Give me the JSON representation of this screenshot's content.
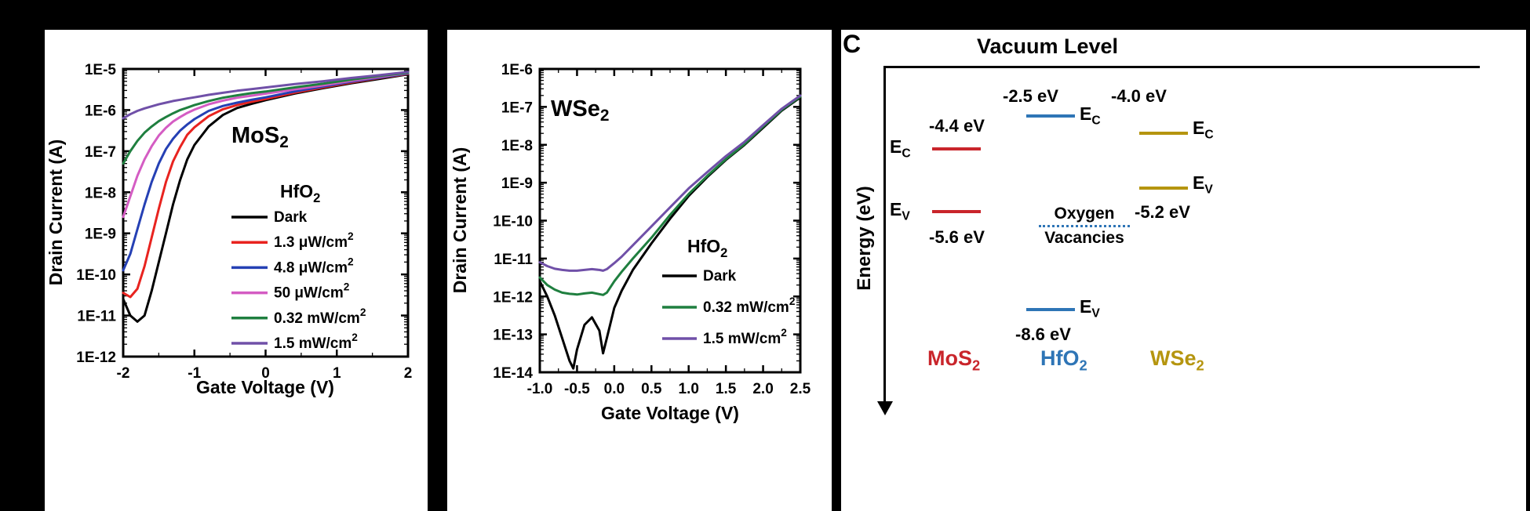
{
  "figure": {
    "background": "#000000",
    "panel_background": "#ffffff"
  },
  "chart_data": [
    {
      "id": "mos2",
      "type": "line",
      "title": {
        "text": "MoS",
        "sub": "2",
        "color": "#d02027"
      },
      "xlabel": "Gate Voltage (V)",
      "ylabel": "Drain Current (A)",
      "xlim": [
        -2,
        2
      ],
      "ylog_range": [
        -12,
        -5
      ],
      "x_ticks": [
        -2,
        -1,
        0,
        1,
        2
      ],
      "x_tick_labels": [
        "-2",
        "-1",
        "0",
        "1",
        "2"
      ],
      "y_tick_labels": [
        "1E-5",
        "1E-6",
        "1E-7",
        "1E-8",
        "1E-9",
        "1E-10",
        "1E-11",
        "1E-12"
      ],
      "legend_title": {
        "text": "HfO",
        "sub": "2",
        "color": "#5b9bd5"
      },
      "series": [
        {
          "name": "Dark",
          "sup": "",
          "color": "#000000",
          "x": [
            -2,
            -1.9,
            -1.8,
            -1.7,
            -1.6,
            -1.5,
            -1.4,
            -1.3,
            -1.2,
            -1.1,
            -1,
            -0.8,
            -0.6,
            -0.4,
            -0.2,
            0,
            0.4,
            0.8,
            1.2,
            1.6,
            2
          ],
          "logy": [
            -10.6,
            -11.0,
            -11.15,
            -11.0,
            -10.4,
            -9.7,
            -9.0,
            -8.3,
            -7.7,
            -7.2,
            -6.85,
            -6.4,
            -6.12,
            -5.95,
            -5.85,
            -5.76,
            -5.6,
            -5.47,
            -5.35,
            -5.24,
            -5.13
          ]
        },
        {
          "name": "1.3 μW/cm",
          "sup": "2",
          "color": "#e8231f",
          "x": [
            -2,
            -1.9,
            -1.8,
            -1.7,
            -1.6,
            -1.5,
            -1.4,
            -1.3,
            -1.2,
            -1.1,
            -1,
            -0.8,
            -0.6,
            -0.4,
            -0.2,
            0,
            0.4,
            0.8,
            1.2,
            1.6,
            2
          ],
          "logy": [
            -10.45,
            -10.55,
            -10.35,
            -9.8,
            -9.1,
            -8.4,
            -7.75,
            -7.25,
            -6.9,
            -6.6,
            -6.42,
            -6.15,
            -5.98,
            -5.88,
            -5.8,
            -5.73,
            -5.58,
            -5.45,
            -5.33,
            -5.22,
            -5.12
          ]
        },
        {
          "name": "4.8 μW/cm",
          "sup": "2",
          "color": "#2540b4",
          "x": [
            -2,
            -1.9,
            -1.8,
            -1.7,
            -1.6,
            -1.5,
            -1.4,
            -1.3,
            -1.2,
            -1.1,
            -1,
            -0.8,
            -0.6,
            -0.4,
            -0.2,
            0,
            0.4,
            0.8,
            1.2,
            1.6,
            2
          ],
          "logy": [
            -9.9,
            -9.5,
            -8.9,
            -8.3,
            -7.75,
            -7.3,
            -6.95,
            -6.7,
            -6.5,
            -6.35,
            -6.22,
            -6.02,
            -5.9,
            -5.82,
            -5.75,
            -5.69,
            -5.55,
            -5.43,
            -5.31,
            -5.21,
            -5.11
          ]
        },
        {
          "name": "50 μW/cm",
          "sup": "2",
          "color": "#d45cc3",
          "x": [
            -2,
            -1.9,
            -1.8,
            -1.7,
            -1.6,
            -1.5,
            -1.4,
            -1.3,
            -1.2,
            -1.1,
            -1,
            -0.8,
            -0.6,
            -0.4,
            -0.2,
            0,
            0.4,
            0.8,
            1.2,
            1.6,
            2
          ],
          "logy": [
            -8.6,
            -8.1,
            -7.6,
            -7.2,
            -6.88,
            -6.62,
            -6.43,
            -6.28,
            -6.17,
            -6.07,
            -5.99,
            -5.86,
            -5.77,
            -5.7,
            -5.65,
            -5.6,
            -5.5,
            -5.4,
            -5.29,
            -5.19,
            -5.1
          ]
        },
        {
          "name": "0.32 mW/cm",
          "sup": "2",
          "color": "#1f7f3f",
          "x": [
            -2,
            -1.9,
            -1.8,
            -1.7,
            -1.6,
            -1.5,
            -1.4,
            -1.3,
            -1.2,
            -1.1,
            -1,
            -0.8,
            -0.6,
            -0.4,
            -0.2,
            0,
            0.4,
            0.8,
            1.2,
            1.6,
            2
          ],
          "logy": [
            -7.3,
            -7.0,
            -6.75,
            -6.55,
            -6.4,
            -6.27,
            -6.17,
            -6.08,
            -6.0,
            -5.94,
            -5.88,
            -5.78,
            -5.7,
            -5.64,
            -5.59,
            -5.55,
            -5.45,
            -5.36,
            -5.26,
            -5.17,
            -5.09
          ]
        },
        {
          "name": "1.5 mW/cm",
          "sup": "2",
          "color": "#7050a8",
          "x": [
            -2,
            -1.9,
            -1.8,
            -1.7,
            -1.6,
            -1.5,
            -1.4,
            -1.3,
            -1.2,
            -1.1,
            -1,
            -0.8,
            -0.6,
            -0.4,
            -0.2,
            0,
            0.4,
            0.8,
            1.2,
            1.6,
            2
          ],
          "logy": [
            -6.2,
            -6.1,
            -6.02,
            -5.96,
            -5.91,
            -5.86,
            -5.82,
            -5.78,
            -5.75,
            -5.72,
            -5.69,
            -5.63,
            -5.58,
            -5.53,
            -5.49,
            -5.45,
            -5.37,
            -5.3,
            -5.22,
            -5.15,
            -5.07
          ]
        }
      ]
    },
    {
      "id": "wse2",
      "type": "line",
      "title": {
        "text": "WSe",
        "sub": "2",
        "color": "#b5950f"
      },
      "xlabel": "Gate Voltage (V)",
      "ylabel": "Drain Current (A)",
      "xlim": [
        -1,
        2.5
      ],
      "ylog_range": [
        -14,
        -6
      ],
      "x_ticks": [
        -1,
        -0.5,
        0,
        0.5,
        1,
        1.5,
        2,
        2.5
      ],
      "x_tick_labels": [
        "-1.0",
        "-0.5",
        "0.0",
        "0.5",
        "1.0",
        "1.5",
        "2.0",
        "2.5"
      ],
      "y_tick_labels": [
        "1E-6",
        "1E-7",
        "1E-8",
        "1E-9",
        "1E-10",
        "1E-11",
        "1E-12",
        "1E-13",
        "1E-14"
      ],
      "legend_title": {
        "text": "HfO",
        "sub": "2",
        "color": "#5b9bd5"
      },
      "series": [
        {
          "name": "Dark",
          "sup": "",
          "color": "#000000",
          "x": [
            -1,
            -0.9,
            -0.8,
            -0.7,
            -0.6,
            -0.55,
            -0.5,
            -0.4,
            -0.3,
            -0.2,
            -0.15,
            -0.1,
            0,
            0.1,
            0.25,
            0.5,
            0.75,
            1,
            1.25,
            1.5,
            1.75,
            2,
            2.25,
            2.5
          ],
          "logy": [
            -11.6,
            -12.0,
            -12.5,
            -13.1,
            -13.7,
            -13.9,
            -13.4,
            -12.75,
            -12.55,
            -12.9,
            -13.5,
            -13.1,
            -12.3,
            -11.85,
            -11.3,
            -10.6,
            -9.95,
            -9.35,
            -8.85,
            -8.4,
            -8.0,
            -7.55,
            -7.1,
            -6.75
          ]
        },
        {
          "name": "0.32 mW/cm",
          "sup": "2",
          "color": "#1f7f3f",
          "x": [
            -1,
            -0.9,
            -0.8,
            -0.7,
            -0.6,
            -0.55,
            -0.5,
            -0.4,
            -0.3,
            -0.2,
            -0.15,
            -0.1,
            0,
            0.1,
            0.25,
            0.5,
            0.75,
            1,
            1.25,
            1.5,
            1.75,
            2,
            2.25,
            2.5
          ],
          "logy": [
            -11.5,
            -11.7,
            -11.82,
            -11.9,
            -11.93,
            -11.94,
            -11.95,
            -11.92,
            -11.9,
            -11.94,
            -11.96,
            -11.9,
            -11.6,
            -11.35,
            -11.0,
            -10.45,
            -9.85,
            -9.3,
            -8.82,
            -8.38,
            -7.98,
            -7.52,
            -7.08,
            -6.73
          ]
        },
        {
          "name": "1.5 mW/cm",
          "sup": "2",
          "color": "#7050a8",
          "x": [
            -1,
            -0.9,
            -0.8,
            -0.7,
            -0.6,
            -0.55,
            -0.5,
            -0.4,
            -0.3,
            -0.2,
            -0.15,
            -0.1,
            0,
            0.1,
            0.25,
            0.5,
            0.75,
            1,
            1.25,
            1.5,
            1.75,
            2,
            2.25,
            2.5
          ],
          "logy": [
            -11.1,
            -11.2,
            -11.27,
            -11.3,
            -11.32,
            -11.32,
            -11.32,
            -11.3,
            -11.28,
            -11.3,
            -11.32,
            -11.28,
            -11.12,
            -10.95,
            -10.65,
            -10.15,
            -9.65,
            -9.15,
            -8.72,
            -8.3,
            -7.92,
            -7.48,
            -7.05,
            -6.7
          ]
        }
      ]
    }
  ],
  "band_diagram": {
    "panel_label": "C",
    "title": "Vacuum Level",
    "axis_label": "Energy (eV)",
    "oxygen_vacancies": {
      "line1": "Oxygen",
      "line2": "Vacancies"
    },
    "materials": [
      {
        "name": "MoS",
        "sub": "2",
        "color": "#c9252b"
      },
      {
        "name": "HfO",
        "sub": "2",
        "color": "#2e75b6"
      },
      {
        "name": "WSe",
        "sub": "2",
        "color": "#b5950f"
      }
    ],
    "levels": {
      "mos2_ec": {
        "sym": "E",
        "sub": "C",
        "value": "-4.4 eV"
      },
      "mos2_ev": {
        "sym": "E",
        "sub": "V",
        "value": "-5.6 eV"
      },
      "hfo2_ec": {
        "sym": "E",
        "sub": "C",
        "value": "-2.5 eV"
      },
      "hfo2_ev": {
        "sym": "E",
        "sub": "V",
        "value": "-8.6 eV"
      },
      "wse2_ec": {
        "sym": "E",
        "sub": "C",
        "value": "-4.0 eV"
      },
      "wse2_ev": {
        "sym": "E",
        "sub": "V",
        "value": "-5.2 eV"
      }
    }
  }
}
